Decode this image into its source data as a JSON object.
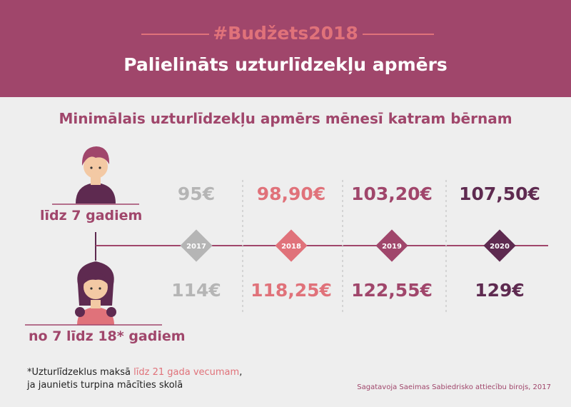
{
  "header": {
    "hashtag": "#Budžets2018",
    "title": "Palielināts uzturlīdzekļu apmērs"
  },
  "subtitle": "Minimālais uzturlīdzekļu apmērs mēnesī katram bērnam",
  "groups": {
    "young": "līdz 7 gadiem",
    "older": "no 7 līdz 18* gadiem"
  },
  "footnote": {
    "line1_prefix": "*Uzturlīdzeklus maksā ",
    "line1_highlight": "līdz 21 gada vecumam",
    "line1_suffix": ",",
    "line2": "ja jaunietis turpina mācīties skolā"
  },
  "source": "Sagatavoja Saeimas Sabiedrisko attiecību birojs, 2017",
  "colors": {
    "header_bg": "#a0466b",
    "accent": "#e0727a",
    "dark_purple": "#5e2a50",
    "mid_purple": "#a0466b",
    "grey": "#b5b5b5",
    "background": "#eeeeee"
  },
  "chart_data": {
    "type": "table",
    "categories": [
      "2017",
      "2018",
      "2019",
      "2020"
    ],
    "series": [
      {
        "name": "līdz 7 gadiem",
        "values": [
          95,
          98.9,
          103.2,
          107.5
        ],
        "labels": [
          "95€",
          "98,90€",
          "103,20€",
          "107,50€"
        ]
      },
      {
        "name": "no 7 līdz 18* gadiem",
        "values": [
          114,
          118.25,
          122.55,
          129
        ],
        "labels": [
          "114€",
          "118,25€",
          "122,55€",
          "129€"
        ]
      }
    ],
    "year_colors": [
      "#b5b5b5",
      "#e0727a",
      "#a0466b",
      "#5e2a50"
    ]
  }
}
